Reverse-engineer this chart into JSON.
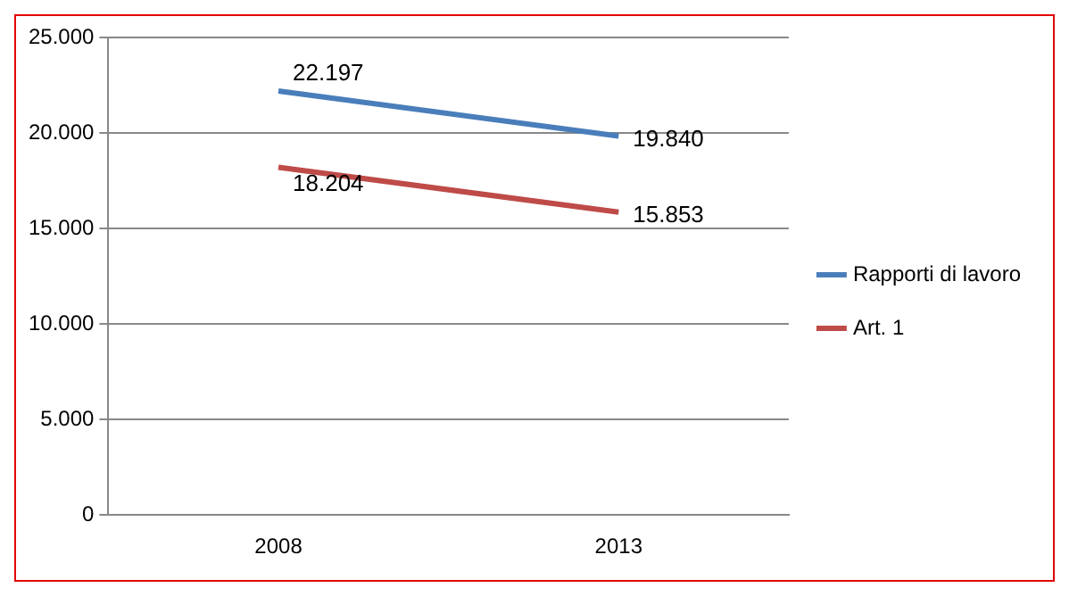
{
  "chart_data": {
    "type": "line",
    "categories": [
      "2008",
      "2013"
    ],
    "series": [
      {
        "name": "Rapporti di lavoro",
        "color": "#4a7ebb",
        "values": [
          22197,
          19840
        ],
        "value_labels": [
          "22.197",
          "19.840"
        ]
      },
      {
        "name": "Art. 1",
        "color": "#be4b48",
        "values": [
          18204,
          15853
        ],
        "value_labels": [
          "18.204",
          "15.853"
        ]
      }
    ],
    "ylim": [
      0,
      25000
    ],
    "yticks": [
      {
        "value": 0,
        "label": "0"
      },
      {
        "value": 5000,
        "label": "5.000"
      },
      {
        "value": 10000,
        "label": "10.000"
      },
      {
        "value": 15000,
        "label": "15.000"
      },
      {
        "value": 20000,
        "label": "20.000"
      },
      {
        "value": 25000,
        "label": "25.000"
      }
    ],
    "grid": "y",
    "legend": "right",
    "marker": "none",
    "line_style": "solid"
  }
}
